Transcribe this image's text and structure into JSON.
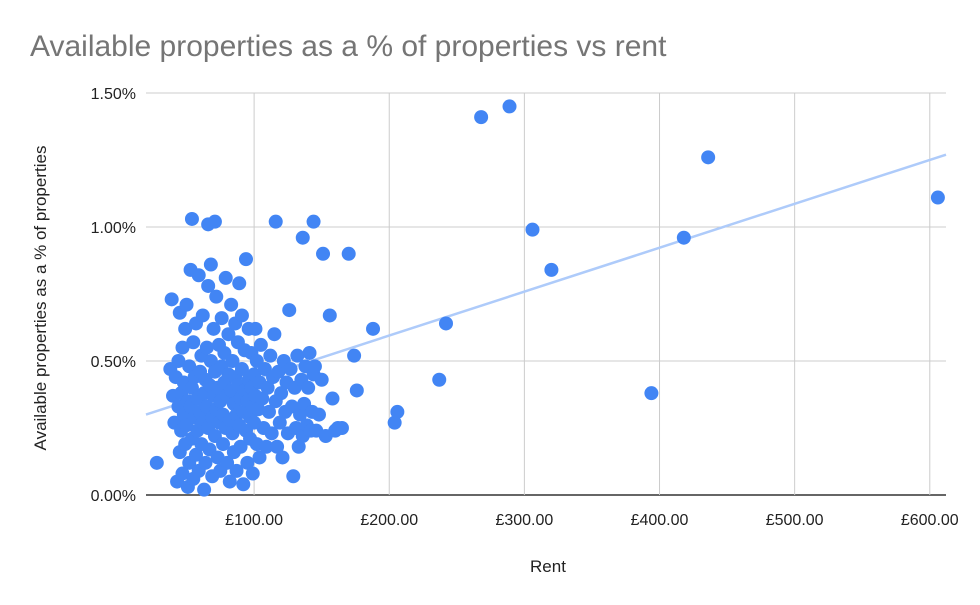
{
  "chart_data": {
    "type": "scatter",
    "title": "Available properties as a % of properties vs rent",
    "xlabel": "Rent",
    "ylabel": "Available properties as a % of properties",
    "xlim": [
      20,
      612
    ],
    "ylim": [
      0,
      1.5
    ],
    "x_ticks": [
      {
        "value": 100,
        "label": "£100.00"
      },
      {
        "value": 200,
        "label": "£200.00"
      },
      {
        "value": 300,
        "label": "£300.00"
      },
      {
        "value": 400,
        "label": "£400.00"
      },
      {
        "value": 500,
        "label": "£500.00"
      },
      {
        "value": 600,
        "label": "£600.00"
      }
    ],
    "y_ticks": [
      {
        "value": 0,
        "label": "0.00%"
      },
      {
        "value": 0.5,
        "label": "0.50%"
      },
      {
        "value": 1.0,
        "label": "1.00%"
      },
      {
        "value": 1.5,
        "label": "1.50%"
      }
    ],
    "grid": true,
    "legend": "none",
    "point_color": "#4285f4",
    "trendline_color": "#aecbfa",
    "trendline": {
      "x": [
        20,
        612
      ],
      "y": [
        0.3,
        1.27
      ]
    },
    "series": [
      {
        "points": [
          [
            28,
            0.12
          ],
          [
            38,
            0.47
          ],
          [
            39,
            0.73
          ],
          [
            40,
            0.37
          ],
          [
            41,
            0.27
          ],
          [
            42,
            0.44
          ],
          [
            43,
            0.05
          ],
          [
            44,
            0.5
          ],
          [
            44,
            0.33
          ],
          [
            45,
            0.16
          ],
          [
            45,
            0.68
          ],
          [
            46,
            0.24
          ],
          [
            46,
            0.38
          ],
          [
            47,
            0.08
          ],
          [
            47,
            0.55
          ],
          [
            48,
            0.3
          ],
          [
            48,
            0.42
          ],
          [
            49,
            0.19
          ],
          [
            49,
            0.62
          ],
          [
            50,
            0.26
          ],
          [
            50,
            0.71
          ],
          [
            51,
            0.35
          ],
          [
            51,
            0.03
          ],
          [
            52,
            0.48
          ],
          [
            52,
            0.12
          ],
          [
            53,
            0.84
          ],
          [
            53,
            0.33
          ],
          [
            54,
            0.4
          ],
          [
            54,
            0.21
          ],
          [
            55,
            0.06
          ],
          [
            55,
            0.57
          ],
          [
            56,
            0.29
          ],
          [
            56,
            0.44
          ],
          [
            57,
            0.64
          ],
          [
            57,
            0.15
          ],
          [
            58,
            0.36
          ],
          [
            58,
            0.24
          ],
          [
            59,
            0.82
          ],
          [
            59,
            0.09
          ],
          [
            60,
            0.46
          ],
          [
            60,
            0.31
          ],
          [
            61,
            0.19
          ],
          [
            61,
            0.52
          ],
          [
            62,
            0.67
          ],
          [
            62,
            0.27
          ],
          [
            63,
            0.38
          ],
          [
            63,
            0.02
          ],
          [
            64,
            0.43
          ],
          [
            64,
            0.12
          ],
          [
            65,
            0.55
          ],
          [
            65,
            0.33
          ],
          [
            66,
            0.25
          ],
          [
            66,
            0.78
          ],
          [
            67,
            0.41
          ],
          [
            67,
            0.17
          ],
          [
            68,
            0.5
          ],
          [
            68,
            0.86
          ],
          [
            69,
            0.29
          ],
          [
            69,
            0.07
          ],
          [
            70,
            0.37
          ],
          [
            70,
            0.62
          ],
          [
            71,
            0.22
          ],
          [
            71,
            0.46
          ],
          [
            72,
            0.32
          ],
          [
            72,
            0.74
          ],
          [
            73,
            0.14
          ],
          [
            73,
            0.4
          ],
          [
            74,
            0.56
          ],
          [
            74,
            0.27
          ],
          [
            75,
            0.35
          ],
          [
            75,
            0.09
          ],
          [
            76,
            0.48
          ],
          [
            76,
            0.66
          ],
          [
            77,
            0.3
          ],
          [
            77,
            0.19
          ],
          [
            78,
            0.42
          ],
          [
            78,
            0.53
          ],
          [
            79,
            0.25
          ],
          [
            79,
            0.81
          ],
          [
            80,
            0.37
          ],
          [
            80,
            0.12
          ],
          [
            81,
            0.45
          ],
          [
            81,
            0.6
          ],
          [
            82,
            0.28
          ],
          [
            82,
            0.05
          ],
          [
            83,
            0.39
          ],
          [
            83,
            0.71
          ],
          [
            84,
            0.23
          ],
          [
            84,
            0.5
          ],
          [
            85,
            0.34
          ],
          [
            85,
            0.16
          ],
          [
            86,
            0.44
          ],
          [
            86,
            0.64
          ],
          [
            87,
            0.3
          ],
          [
            87,
            0.09
          ],
          [
            88,
            0.41
          ],
          [
            88,
            0.57
          ],
          [
            89,
            0.26
          ],
          [
            89,
            0.79
          ],
          [
            90,
            0.36
          ],
          [
            90,
            0.18
          ],
          [
            91,
            0.47
          ],
          [
            91,
            0.67
          ],
          [
            92,
            0.31
          ],
          [
            92,
            0.04
          ],
          [
            93,
            0.39
          ],
          [
            93,
            0.54
          ],
          [
            94,
            0.24
          ],
          [
            94,
            0.88
          ],
          [
            95,
            0.35
          ],
          [
            95,
            0.12
          ],
          [
            96,
            0.43
          ],
          [
            96,
            0.62
          ],
          [
            97,
            0.29
          ],
          [
            97,
            0.21
          ],
          [
            98,
            0.4
          ],
          [
            98,
            0.53
          ],
          [
            99,
            0.33
          ],
          [
            99,
            0.08
          ],
          [
            100,
            0.45
          ],
          [
            100,
            0.27
          ],
          [
            101,
            0.37
          ],
          [
            101,
            0.62
          ],
          [
            102,
            0.19
          ],
          [
            102,
            0.5
          ],
          [
            103,
            0.32
          ],
          [
            104,
            0.42
          ],
          [
            104,
            0.14
          ],
          [
            105,
            0.56
          ],
          [
            106,
            0.36
          ],
          [
            107,
            0.25
          ],
          [
            108,
            0.47
          ],
          [
            109,
            0.18
          ],
          [
            110,
            0.4
          ],
          [
            111,
            0.31
          ],
          [
            112,
            0.52
          ],
          [
            113,
            0.23
          ],
          [
            114,
            0.44
          ],
          [
            115,
            0.6
          ],
          [
            116,
            0.35
          ],
          [
            117,
            0.18
          ],
          [
            118,
            0.46
          ],
          [
            119,
            0.27
          ],
          [
            120,
            0.38
          ],
          [
            121,
            0.14
          ],
          [
            122,
            0.5
          ],
          [
            123,
            0.31
          ],
          [
            124,
            0.42
          ],
          [
            125,
            0.23
          ],
          [
            126,
            0.69
          ],
          [
            127,
            0.47
          ],
          [
            128,
            0.33
          ],
          [
            129,
            0.07
          ],
          [
            130,
            0.4
          ],
          [
            131,
            0.25
          ],
          [
            132,
            0.52
          ],
          [
            133,
            0.18
          ],
          [
            134,
            0.3
          ],
          [
            135,
            0.43
          ],
          [
            136,
            0.22
          ],
          [
            137,
            0.34
          ],
          [
            138,
            0.48
          ],
          [
            139,
            0.26
          ],
          [
            140,
            0.4
          ],
          [
            141,
            0.53
          ],
          [
            142,
            0.24
          ],
          [
            143,
            0.31
          ],
          [
            144,
            0.45
          ],
          [
            145,
            0.48
          ],
          [
            146,
            0.24
          ],
          [
            148,
            0.3
          ],
          [
            150,
            0.43
          ],
          [
            153,
            0.22
          ],
          [
            156,
            0.67
          ],
          [
            158,
            0.36
          ],
          [
            160,
            0.24
          ],
          [
            162,
            0.25
          ],
          [
            165,
            0.25
          ],
          [
            170,
            0.9
          ],
          [
            174,
            0.52
          ],
          [
            176,
            0.39
          ],
          [
            188,
            0.62
          ],
          [
            204,
            0.27
          ],
          [
            206,
            0.31
          ],
          [
            237,
            0.43
          ],
          [
            242,
            0.64
          ],
          [
            54,
            1.03
          ],
          [
            66,
            1.01
          ],
          [
            71,
            1.02
          ],
          [
            116,
            1.02
          ],
          [
            136,
            0.96
          ],
          [
            144,
            1.02
          ],
          [
            151,
            0.9
          ],
          [
            268,
            1.41
          ],
          [
            289,
            1.45
          ],
          [
            306,
            0.99
          ],
          [
            320,
            0.84
          ],
          [
            394,
            0.38
          ],
          [
            418,
            0.96
          ],
          [
            436,
            1.26
          ],
          [
            606,
            1.11
          ]
        ]
      }
    ]
  }
}
